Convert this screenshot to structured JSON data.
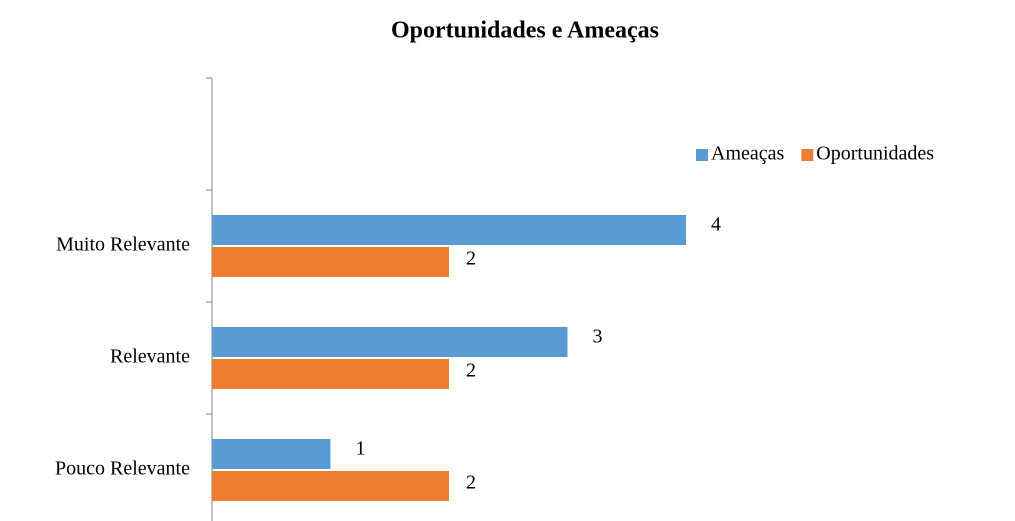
{
  "chart_data": {
    "type": "hbar",
    "title": "Oportunidades  e Ameaças",
    "categories": [
      "Pouco Relevante",
      "Relevante",
      "Muito Relevante",
      null
    ],
    "series": [
      {
        "name": "Ameaças",
        "color": "#5b9bd5",
        "values": [
          1,
          3,
          4,
          null
        ]
      },
      {
        "name": "Oportunidades",
        "color": "#ed7d31",
        "values": [
          2,
          2,
          2,
          null
        ]
      }
    ],
    "legend": "top-right"
  }
}
